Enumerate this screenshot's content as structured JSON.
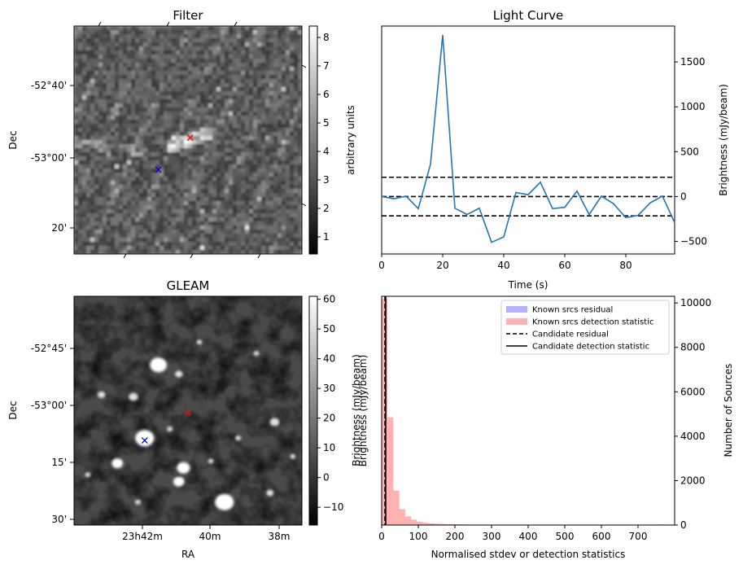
{
  "chart_data": [
    {
      "type": "heatmap",
      "title": "Filter",
      "xlabel": "",
      "ylabel": "Dec",
      "ytick_labels": [
        "-52°40'",
        "-53°00'",
        "20'"
      ],
      "colorbar": {
        "label": "arbitrary units",
        "range": [
          0.4,
          8.4
        ],
        "ticks": [
          1,
          2,
          3,
          4,
          5,
          6,
          7,
          8
        ]
      },
      "markers": [
        {
          "symbol": "x",
          "color": "#ff0000",
          "fx": 0.51,
          "fy": 0.49
        },
        {
          "symbol": "x",
          "color": "#0000ff",
          "fx": 0.37,
          "fy": 0.63
        }
      ],
      "grid": false
    },
    {
      "type": "line",
      "title": "Light Curve",
      "xlabel": "Time (s)",
      "ylabel": "Brightness (mJy/beam)",
      "xlim": [
        0,
        96
      ],
      "ylim": [
        -640,
        1900
      ],
      "xticks": [
        0,
        20,
        40,
        60,
        80
      ],
      "yticks": [
        -500,
        0,
        500,
        1000,
        1500
      ],
      "x": [
        0,
        4,
        8,
        12,
        16,
        20,
        24,
        28,
        32,
        36,
        40,
        44,
        48,
        52,
        56,
        60,
        64,
        68,
        72,
        76,
        80,
        84,
        88,
        92,
        96
      ],
      "values": [
        0,
        -25,
        5,
        -135,
        360,
        1800,
        -130,
        -200,
        -130,
        -510,
        -450,
        45,
        20,
        160,
        -135,
        -120,
        60,
        -200,
        5,
        -80,
        -235,
        -210,
        -70,
        5,
        -290
      ],
      "hlines": [
        215,
        0,
        -215
      ],
      "color": "#1f77b4",
      "grid": false
    },
    {
      "type": "heatmap",
      "title": "GLEAM",
      "xlabel": "RA",
      "ylabel": "Dec",
      "xtick_labels": [
        "23h42m",
        "40m",
        "38m"
      ],
      "ytick_labels": [
        "-52°45'",
        "-53°00'",
        "15'",
        "30'"
      ],
      "colorbar": {
        "label": "Brightness (mJy/beam)",
        "range": [
          -16,
          61
        ],
        "ticks": [
          -10,
          0,
          10,
          20,
          30,
          40,
          50,
          60
        ]
      },
      "markers": [
        {
          "symbol": "x",
          "color": "#ff0000",
          "fx": 0.5,
          "fy": 0.51
        },
        {
          "symbol": "x",
          "color": "#0000ff",
          "fx": 0.31,
          "fy": 0.63
        }
      ],
      "grid": false
    },
    {
      "type": "bar",
      "title": "",
      "xlabel": "Normalised stdev or detection statistics",
      "ylabel": "Number of Sources",
      "xlim": [
        0,
        800
      ],
      "ylim": [
        0,
        10300
      ],
      "xticks": [
        0,
        100,
        200,
        300,
        400,
        500,
        600,
        700
      ],
      "yticks": [
        0,
        2000,
        4000,
        6000,
        8000,
        10000
      ],
      "bin_width": 16,
      "bins": [
        0,
        16,
        32,
        48,
        64,
        80,
        96,
        112,
        128,
        144,
        160,
        176,
        192,
        208,
        224,
        240,
        256,
        272,
        288,
        304,
        320,
        336,
        352,
        368,
        384,
        400,
        416,
        432,
        448,
        464,
        480,
        496,
        512,
        528,
        544,
        560,
        576,
        592,
        608,
        624,
        640,
        656,
        672,
        688,
        704,
        720,
        736,
        752,
        768
      ],
      "counts": [
        10200,
        4850,
        1550,
        720,
        390,
        240,
        150,
        110,
        80,
        60,
        50,
        40,
        35,
        30,
        25,
        22,
        20,
        18,
        16,
        15,
        14,
        13,
        12,
        11,
        10,
        9,
        8,
        8,
        7,
        6,
        6,
        5,
        5,
        5,
        4,
        4,
        4,
        3,
        3,
        3,
        3,
        3,
        2,
        2,
        2,
        2,
        2,
        30,
        2
      ],
      "vlines": {
        "candidate_residual": 9,
        "candidate_detection_statistic": 11
      },
      "legend": {
        "placement": "top-right",
        "entries": [
          "Known srcs residual",
          "Known srcs detection statistic",
          "Candidate residual",
          "Candidate detection statistic"
        ]
      },
      "colors": {
        "residual": "#0000ff",
        "detection": "#ff0000"
      },
      "twin_ylabel": "Brightness (mJy/beam)",
      "grid": false
    }
  ]
}
